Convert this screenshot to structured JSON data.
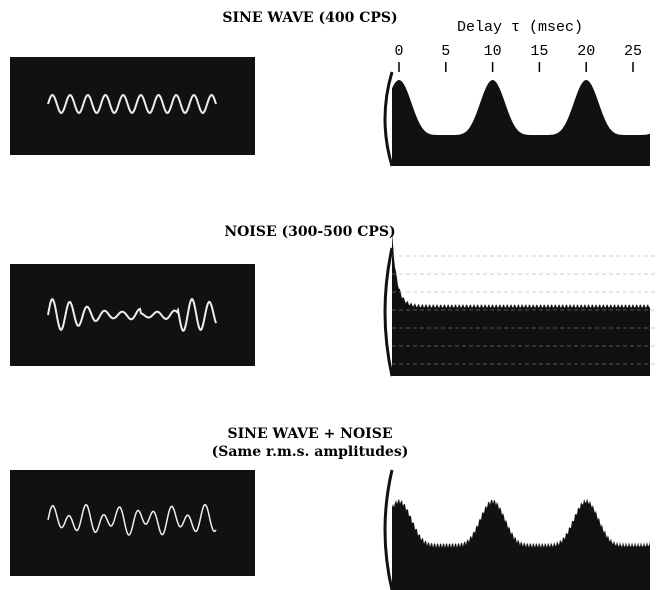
{
  "panels": [
    {
      "title": "SINE WAVE (400 CPS)"
    },
    {
      "title": "NOISE (300-500 CPS)"
    },
    {
      "title": "SINE WAVE + NOISE",
      "subtitle": "(Same r.m.s. amplitudes)"
    }
  ],
  "delay_axis": {
    "label": "Delay τ (msec)",
    "ticks": [
      "0",
      "5",
      "10",
      "15",
      "20",
      "25"
    ]
  }
}
